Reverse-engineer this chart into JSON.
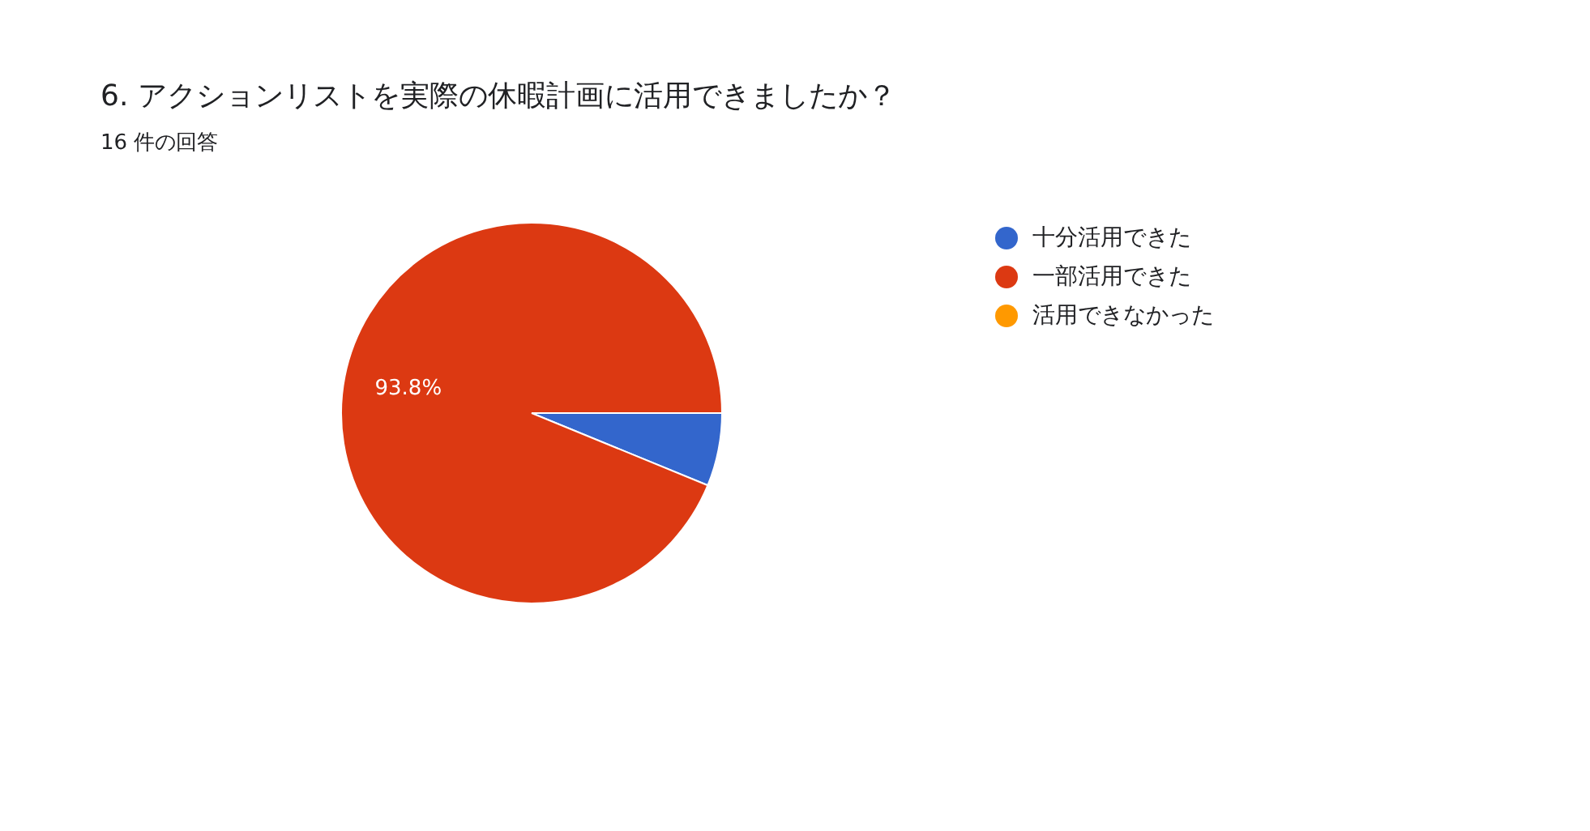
{
  "chart_data": {
    "type": "pie",
    "title": "6. アクションリストを実際の休暇計画に活用できましたか？",
    "subtitle": "16 件の回答",
    "categories": [
      "十分活用できた",
      "一部活用できた",
      "活用できなかった"
    ],
    "values": [
      6.2,
      93.8,
      0
    ],
    "colors": [
      "#3366cc",
      "#dc3912",
      "#ff9900"
    ],
    "value_labels": [
      null,
      "93.8%",
      null
    ],
    "legend": "right"
  }
}
